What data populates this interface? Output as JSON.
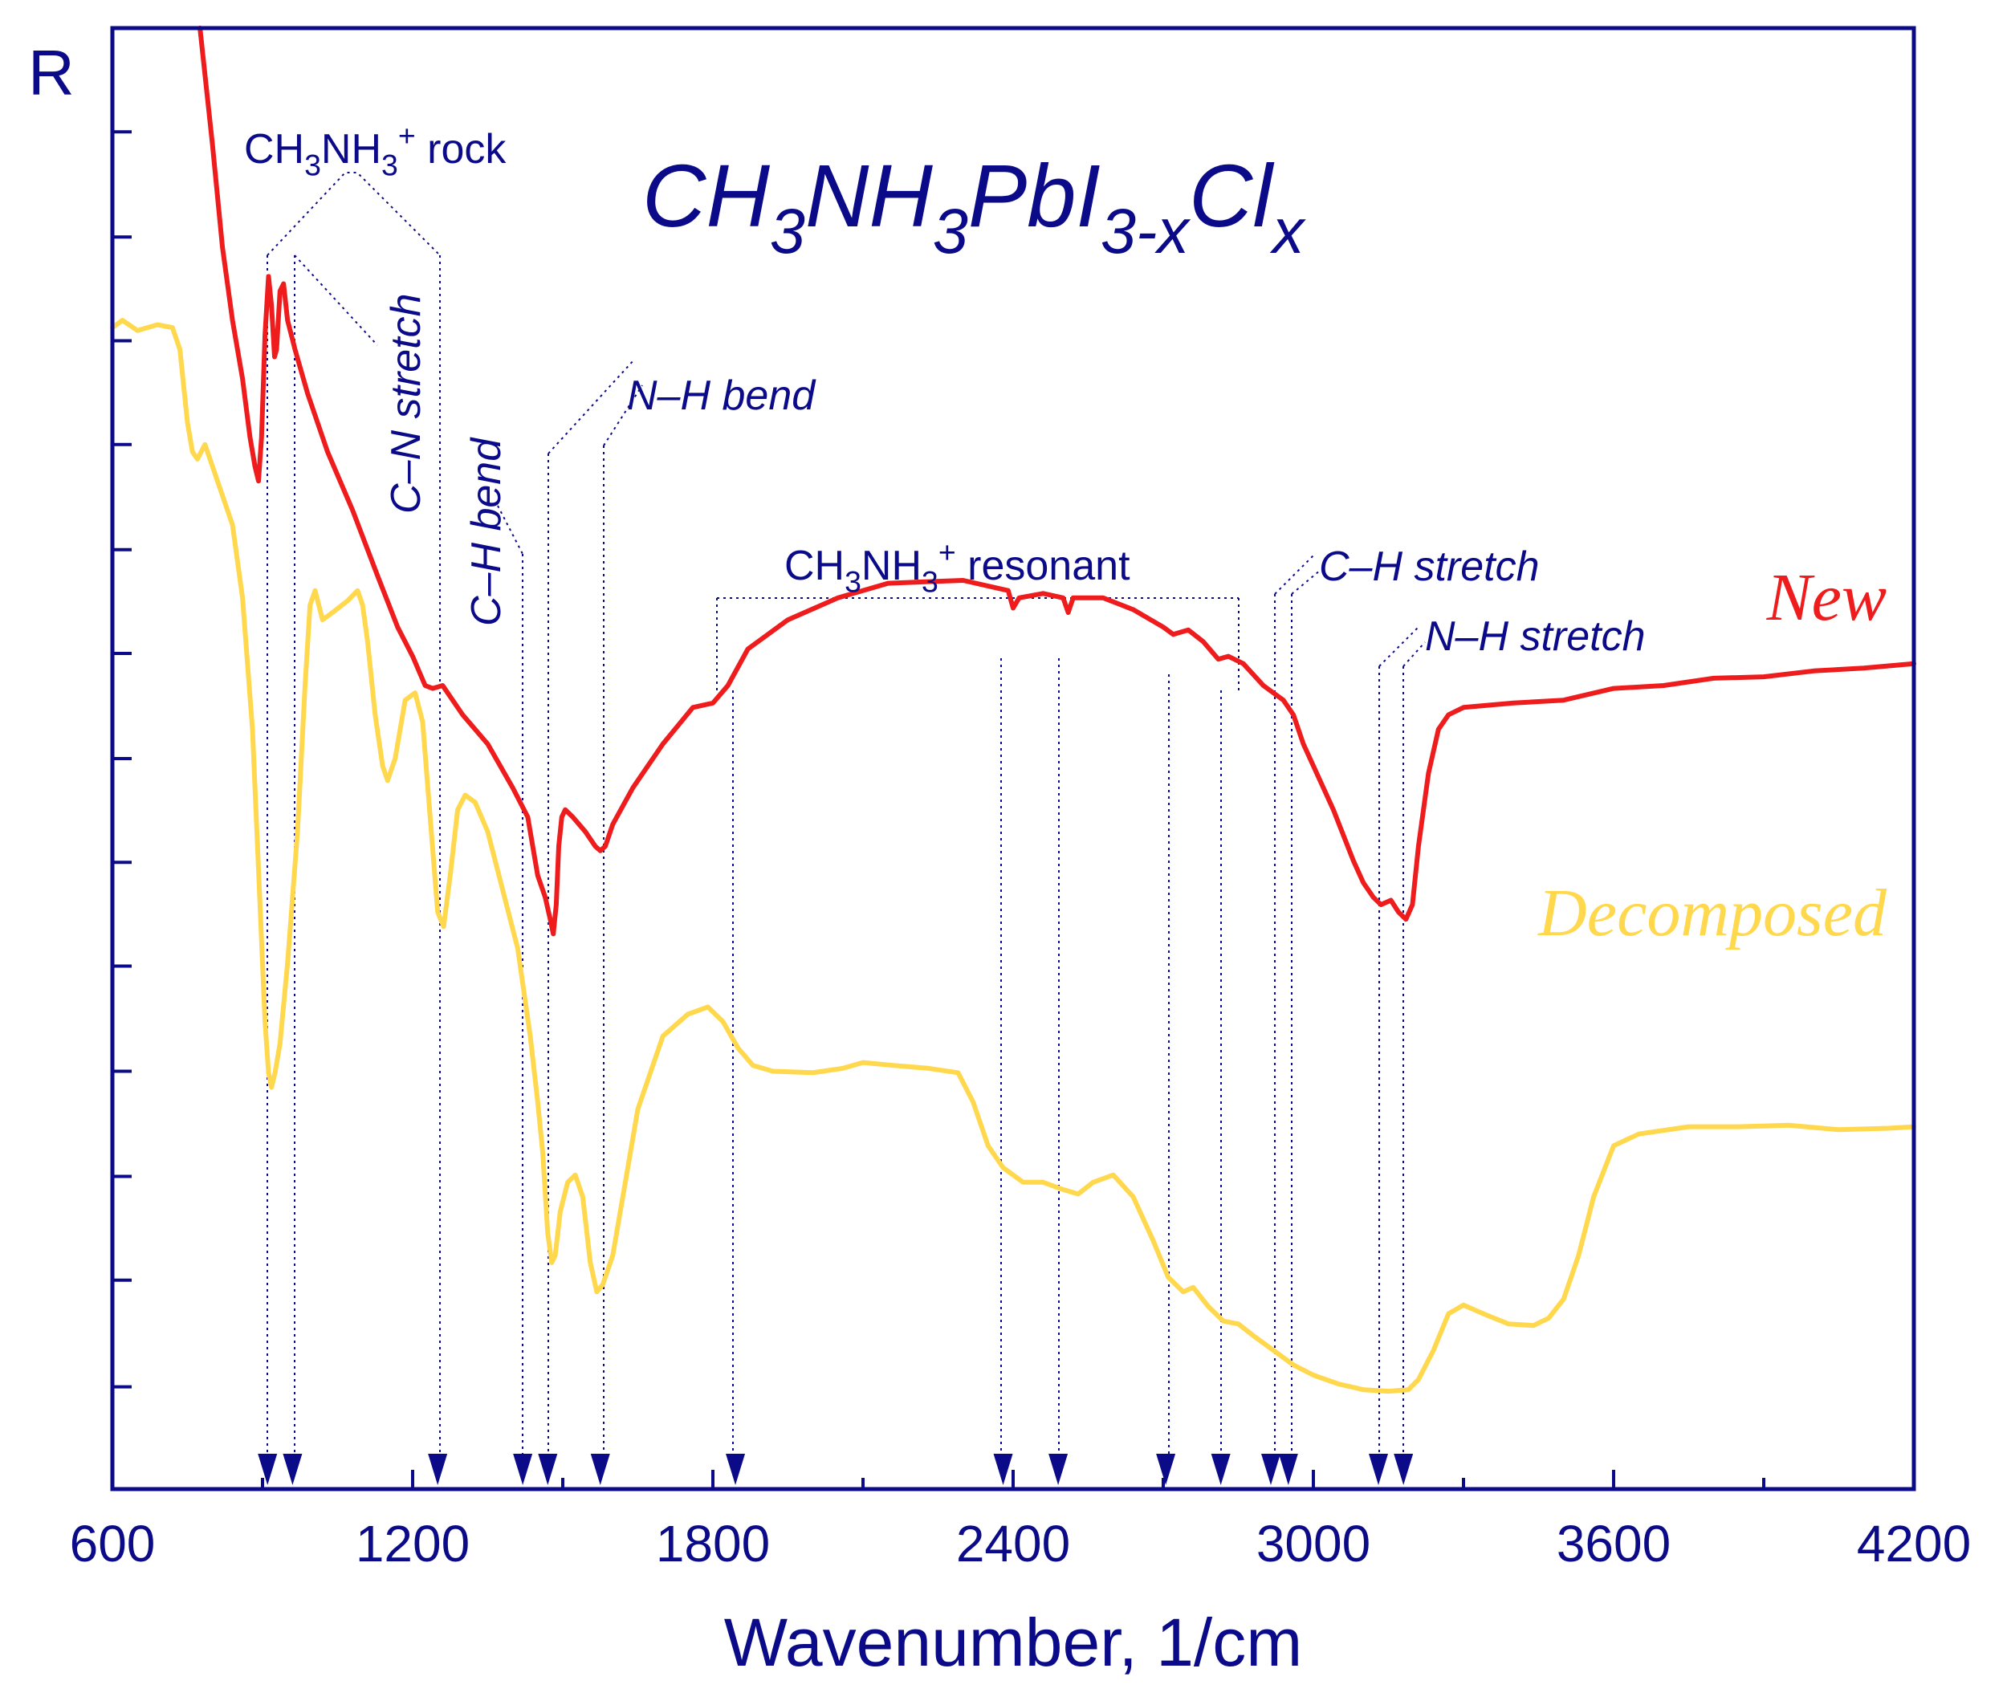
{
  "chart_data": {
    "type": "line",
    "title_parts": [
      {
        "t": "CH",
        "s": "n"
      },
      {
        "t": "3",
        "s": "sub"
      },
      {
        "t": "NH",
        "s": "n"
      },
      {
        "t": "3",
        "s": "sub"
      },
      {
        "t": "PbI",
        "s": "n"
      },
      {
        "t": "3-x",
        "s": "sub"
      },
      {
        "t": "Cl",
        "s": "n"
      },
      {
        "t": "x",
        "s": "sub"
      }
    ],
    "xlabel": "Wavenumber, 1/cm",
    "ylabel": "R",
    "xlim": [
      600,
      4200
    ],
    "ylim": [
      0,
      100
    ],
    "x_ticks": [
      600,
      1200,
      1800,
      2400,
      3000,
      3600,
      4200
    ],
    "x_tick_labels": [
      "600",
      "1200",
      "1800",
      "2400",
      "3000",
      "3600",
      "4200"
    ],
    "y_ticks": [
      7,
      14.3,
      21.4,
      28.6,
      35.8,
      42.9,
      50,
      57.2,
      64.3,
      71.5,
      78.6,
      85.7,
      92.9
    ],
    "colors": {
      "axis": "#0b0b8a",
      "new": "#ee1c1c",
      "decomposed": "#ffd84d"
    },
    "series": [
      {
        "name": "New",
        "color": "#ee1c1c",
        "points": [
          [
            775,
            100
          ],
          [
            800,
            92
          ],
          [
            820,
            85
          ],
          [
            840,
            80
          ],
          [
            860,
            76
          ],
          [
            875,
            72
          ],
          [
            885,
            70
          ],
          [
            892,
            69
          ],
          [
            898,
            72
          ],
          [
            905,
            79
          ],
          [
            912,
            83
          ],
          [
            918,
            81
          ],
          [
            924,
            77.5
          ],
          [
            928,
            78
          ],
          [
            935,
            82
          ],
          [
            942,
            82.5
          ],
          [
            950,
            80
          ],
          [
            965,
            78
          ],
          [
            990,
            75
          ],
          [
            1030,
            71
          ],
          [
            1080,
            67
          ],
          [
            1130,
            62.5
          ],
          [
            1170,
            59
          ],
          [
            1200,
            57
          ],
          [
            1225,
            55
          ],
          [
            1240,
            54.8
          ],
          [
            1260,
            55
          ],
          [
            1300,
            53
          ],
          [
            1350,
            51
          ],
          [
            1400,
            48
          ],
          [
            1430,
            46
          ],
          [
            1450,
            42
          ],
          [
            1465,
            40.5
          ],
          [
            1475,
            39
          ],
          [
            1481,
            38
          ],
          [
            1487,
            40
          ],
          [
            1492,
            44
          ],
          [
            1498,
            46
          ],
          [
            1505,
            46.5
          ],
          [
            1520,
            46
          ],
          [
            1545,
            45
          ],
          [
            1565,
            44
          ],
          [
            1575,
            43.7
          ],
          [
            1585,
            44
          ],
          [
            1600,
            45.5
          ],
          [
            1640,
            48
          ],
          [
            1700,
            51
          ],
          [
            1760,
            53.5
          ],
          [
            1800,
            53.8
          ],
          [
            1830,
            55
          ],
          [
            1870,
            57.5
          ],
          [
            1950,
            59.5
          ],
          [
            2050,
            61
          ],
          [
            2150,
            62
          ],
          [
            2300,
            62.2
          ],
          [
            2390,
            61.5
          ],
          [
            2400,
            60.3
          ],
          [
            2412,
            61
          ],
          [
            2460,
            61.3
          ],
          [
            2500,
            61
          ],
          [
            2510,
            60
          ],
          [
            2520,
            61
          ],
          [
            2580,
            61
          ],
          [
            2640,
            60.2
          ],
          [
            2700,
            59
          ],
          [
            2720,
            58.5
          ],
          [
            2750,
            58.8
          ],
          [
            2780,
            58
          ],
          [
            2810,
            56.8
          ],
          [
            2830,
            57
          ],
          [
            2860,
            56.5
          ],
          [
            2900,
            55
          ],
          [
            2940,
            54
          ],
          [
            2960,
            53
          ],
          [
            2980,
            51
          ],
          [
            3000,
            49.5
          ],
          [
            3040,
            46.5
          ],
          [
            3080,
            43
          ],
          [
            3100,
            41.5
          ],
          [
            3120,
            40.5
          ],
          [
            3135,
            40
          ],
          [
            3155,
            40.3
          ],
          [
            3170,
            39.5
          ],
          [
            3185,
            39
          ],
          [
            3198,
            40
          ],
          [
            3210,
            44
          ],
          [
            3230,
            49
          ],
          [
            3250,
            52
          ],
          [
            3270,
            53
          ],
          [
            3300,
            53.5
          ],
          [
            3400,
            53.8
          ],
          [
            3500,
            54
          ],
          [
            3600,
            54.8
          ],
          [
            3700,
            55
          ],
          [
            3800,
            55.5
          ],
          [
            3900,
            55.6
          ],
          [
            4000,
            56
          ],
          [
            4100,
            56.2
          ],
          [
            4200,
            56.5
          ]
        ]
      },
      {
        "name": "Decomposed",
        "color": "#ffd84d",
        "points": [
          [
            600,
            79.5
          ],
          [
            620,
            80
          ],
          [
            650,
            79.3
          ],
          [
            690,
            79.7
          ],
          [
            720,
            79.5
          ],
          [
            735,
            78
          ],
          [
            750,
            73
          ],
          [
            760,
            71
          ],
          [
            770,
            70.5
          ],
          [
            785,
            71.5
          ],
          [
            800,
            70
          ],
          [
            820,
            68
          ],
          [
            840,
            66
          ],
          [
            860,
            61
          ],
          [
            880,
            52
          ],
          [
            895,
            40
          ],
          [
            905,
            32
          ],
          [
            912,
            28.5
          ],
          [
            918,
            27.5
          ],
          [
            925,
            28.5
          ],
          [
            935,
            30.5
          ],
          [
            950,
            36
          ],
          [
            970,
            45
          ],
          [
            985,
            55
          ],
          [
            995,
            60.5
          ],
          [
            1005,
            61.5
          ],
          [
            1020,
            59.5
          ],
          [
            1040,
            60
          ],
          [
            1070,
            60.8
          ],
          [
            1090,
            61.5
          ],
          [
            1100,
            60.5
          ],
          [
            1110,
            58
          ],
          [
            1125,
            53
          ],
          [
            1140,
            49.5
          ],
          [
            1150,
            48.5
          ],
          [
            1165,
            50
          ],
          [
            1185,
            54
          ],
          [
            1205,
            54.5
          ],
          [
            1220,
            52.5
          ],
          [
            1235,
            46
          ],
          [
            1250,
            39.5
          ],
          [
            1262,
            38.5
          ],
          [
            1275,
            42
          ],
          [
            1290,
            46.5
          ],
          [
            1305,
            47.5
          ],
          [
            1325,
            47
          ],
          [
            1350,
            45
          ],
          [
            1380,
            41
          ],
          [
            1410,
            37
          ],
          [
            1435,
            31
          ],
          [
            1450,
            26.5
          ],
          [
            1460,
            23
          ],
          [
            1470,
            17.5
          ],
          [
            1478,
            15.5
          ],
          [
            1485,
            16
          ],
          [
            1495,
            19
          ],
          [
            1510,
            21
          ],
          [
            1525,
            21.5
          ],
          [
            1540,
            20
          ],
          [
            1555,
            15.5
          ],
          [
            1568,
            13.5
          ],
          [
            1580,
            14
          ],
          [
            1600,
            16
          ],
          [
            1620,
            20
          ],
          [
            1650,
            26
          ],
          [
            1700,
            31
          ],
          [
            1750,
            32.5
          ],
          [
            1790,
            33
          ],
          [
            1820,
            32
          ],
          [
            1850,
            30.2
          ],
          [
            1880,
            29
          ],
          [
            1920,
            28.6
          ],
          [
            2000,
            28.5
          ],
          [
            2060,
            28.8
          ],
          [
            2100,
            29.2
          ],
          [
            2160,
            29
          ],
          [
            2230,
            28.8
          ],
          [
            2290,
            28.5
          ],
          [
            2320,
            26.5
          ],
          [
            2350,
            23.5
          ],
          [
            2380,
            22
          ],
          [
            2420,
            21
          ],
          [
            2460,
            21
          ],
          [
            2500,
            20.5
          ],
          [
            2530,
            20.2
          ],
          [
            2560,
            21
          ],
          [
            2600,
            21.5
          ],
          [
            2640,
            20
          ],
          [
            2680,
            17
          ],
          [
            2710,
            14.5
          ],
          [
            2740,
            13.5
          ],
          [
            2760,
            13.8
          ],
          [
            2790,
            12.5
          ],
          [
            2820,
            11.5
          ],
          [
            2850,
            11.3
          ],
          [
            2880,
            10.5
          ],
          [
            2920,
            9.5
          ],
          [
            2960,
            8.5
          ],
          [
            3000,
            7.8
          ],
          [
            3050,
            7.2
          ],
          [
            3100,
            6.8
          ],
          [
            3150,
            6.7
          ],
          [
            3190,
            6.8
          ],
          [
            3210,
            7.5
          ],
          [
            3240,
            9.5
          ],
          [
            3270,
            12
          ],
          [
            3300,
            12.6
          ],
          [
            3340,
            12
          ],
          [
            3390,
            11.3
          ],
          [
            3440,
            11.2
          ],
          [
            3470,
            11.7
          ],
          [
            3500,
            13
          ],
          [
            3530,
            16
          ],
          [
            3560,
            20
          ],
          [
            3600,
            23.5
          ],
          [
            3650,
            24.3
          ],
          [
            3750,
            24.8
          ],
          [
            3850,
            24.8
          ],
          [
            3950,
            24.9
          ],
          [
            4050,
            24.6
          ],
          [
            4150,
            24.7
          ],
          [
            4200,
            24.8
          ]
        ]
      }
    ],
    "legend": [
      {
        "label": "New",
        "color": "#ee1c1c",
        "position": "right, above red curve"
      },
      {
        "label": "Decomposed",
        "color": "#ffd84d",
        "position": "right, above yellow curve"
      }
    ],
    "annotations": [
      {
        "label_parts": [
          {
            "t": "CH",
            "s": "n"
          },
          {
            "t": "3",
            "s": "sub"
          },
          {
            "t": "NH",
            "s": "n"
          },
          {
            "t": "3",
            "s": "sub"
          },
          {
            "t": "+",
            "s": "sup"
          },
          {
            "t": " rock",
            "s": "n"
          }
        ],
        "italic": false,
        "rotated": false
      },
      {
        "label_parts": [
          {
            "t": "C–N stretch",
            "s": "n"
          }
        ],
        "italic": true,
        "rotated": true
      },
      {
        "label_parts": [
          {
            "t": "C–H bend",
            "s": "n"
          }
        ],
        "italic": true,
        "rotated": true
      },
      {
        "label_parts": [
          {
            "t": "N–H bend",
            "s": "n"
          }
        ],
        "italic": true,
        "rotated": false
      },
      {
        "label_parts": [
          {
            "t": "CH",
            "s": "n"
          },
          {
            "t": "3",
            "s": "sub"
          },
          {
            "t": "NH",
            "s": "n"
          },
          {
            "t": "3",
            "s": "sub"
          },
          {
            "t": "+",
            "s": "sup"
          },
          {
            "t": " resonant",
            "s": "n"
          }
        ],
        "italic": false,
        "rotated": false
      },
      {
        "label_parts": [
          {
            "t": "C–H stretch",
            "s": "n"
          }
        ],
        "italic": true,
        "rotated": false
      },
      {
        "label_parts": [
          {
            "t": "N–H stretch",
            "s": "n"
          }
        ],
        "italic": true,
        "rotated": false
      }
    ],
    "marker_wavenumbers": [
      910,
      960,
      1250,
      1420,
      1470,
      1575,
      1845,
      2380,
      2490,
      2705,
      2815,
      2915,
      2950,
      3130,
      3180
    ],
    "grid": false
  }
}
